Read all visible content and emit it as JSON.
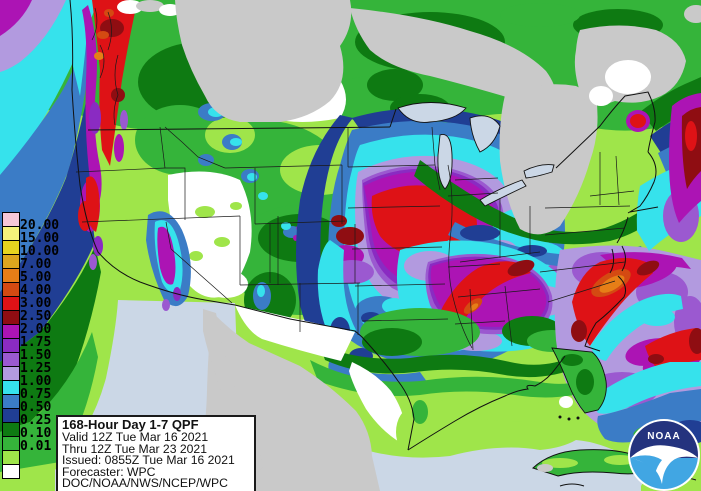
{
  "legend": {
    "values": [
      "20.00",
      "15.00",
      "10.00",
      "7.00",
      "5.00",
      "4.00",
      "3.00",
      "2.50",
      "2.00",
      "1.75",
      "1.50",
      "1.25",
      "1.00",
      "0.75",
      "0.50",
      "0.25",
      "0.10",
      "0.01"
    ],
    "colors": [
      "#F6C7D7",
      "#F5F37B",
      "#E6D41F",
      "#DBA51E",
      "#E67E17",
      "#D44A12",
      "#DE1216",
      "#8F0D12",
      "#AC14B4",
      "#8A2BC2",
      "#9B59D0",
      "#B29ADF",
      "#36E2EC",
      "#3B7CC6",
      "#203E94",
      "#0E7A12",
      "#35B43A",
      "#9FE54A",
      "#FFFFFF"
    ]
  },
  "info_box": {
    "title": "168-Hour Day 1-7 QPF",
    "valid": "Valid 12Z Tue Mar 16 2021",
    "thru": "Thru 12Z Tue Mar 23 2021",
    "issued": "Issued: 0855Z Tue Mar 16 2021",
    "forecaster": "Forecaster: WPC",
    "agency": "DOC/NOAA/NWS/NCEP/WPC"
  },
  "logo": {
    "text": "NOAA"
  },
  "map_colors": {
    "ocean": "#CBD7E6",
    "no_data_land": "#C9C9C9",
    "dry_white": "#FFFFFF"
  }
}
